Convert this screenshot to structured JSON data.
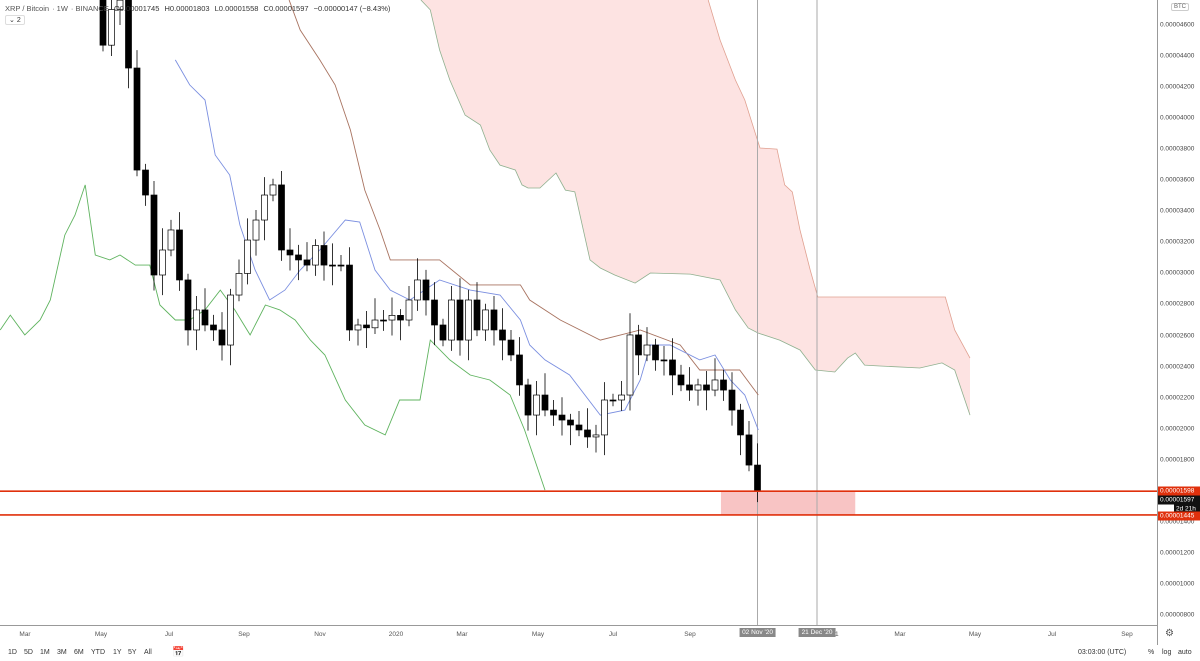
{
  "header": {
    "symbol": "XRP / Bitcoin",
    "interval": "1W",
    "exchange": "BINANCE",
    "o": "O0.00001745",
    "h": "H0.00001803",
    "l": "L0.00001558",
    "c": "C0.00001597",
    "change": "−0.00000147 (−8.43%)",
    "indicators_toggle": "2"
  },
  "price_axis": {
    "currency": "BTC",
    "labels": [
      "0.00004600",
      "0.00004400",
      "0.00004200",
      "0.00004000",
      "0.00003800",
      "0.00003600",
      "0.00003400",
      "0.00003200",
      "0.00003000",
      "0.00002800",
      "0.00002600",
      "0.00002400",
      "0.00002200",
      "0.00002000",
      "0.00001800",
      "0.00001600",
      "0.00001400",
      "0.00001200",
      "0.00001000",
      "0.00000800"
    ],
    "line_upper": "0.00001598",
    "last_price": "0.00001597",
    "countdown": "2d 21h",
    "line_lower": "0.00001445"
  },
  "time_axis": {
    "labels": [
      "Mar",
      "May",
      "Jul",
      "Sep",
      "Nov",
      "2020",
      "Mar",
      "May",
      "Jul",
      "Sep",
      "21",
      "Mar",
      "May",
      "Jul",
      "Sep"
    ],
    "marker1": "02 Nov '20",
    "marker2": "21 Dec '20"
  },
  "bottom_bar": {
    "ranges": [
      "1D",
      "5D",
      "1M",
      "3M",
      "6M",
      "YTD",
      "1Y",
      "5Y",
      "All"
    ],
    "time": "03:03:00 (UTC)",
    "percent": "%",
    "log": "log",
    "auto": "auto"
  },
  "colors": {
    "tenkan": "#7b8fe0",
    "kijun": "#a87360",
    "chikou": "#5fb35f",
    "cloud": "#fde3e2",
    "hline": "#e0300c",
    "zone": "#f8c4c4"
  },
  "chart_data": {
    "type": "candlestick",
    "unit": "1e-8 BTC",
    "x_unit": "weeks from first visible candle",
    "ylim": [
      736,
      4761
    ],
    "closes": [
      4470,
      4700,
      4760,
      4323,
      3666,
      3505,
      2990,
      3151,
      3280,
      2958,
      2636,
      2765,
      2668,
      2636,
      2539,
      2861,
      3000,
      3215,
      3344,
      3505,
      3570,
      3151,
      3119,
      3087,
      3054,
      3180,
      3054,
      3054,
      3054,
      2636,
      2668,
      2650,
      2700,
      2700,
      2730,
      2700,
      2829,
      2958,
      2829,
      2668,
      2571,
      2829,
      2571,
      2829,
      2636,
      2765,
      2636,
      2571,
      2475,
      2282,
      2088,
      2217,
      2120,
      2088,
      2056,
      2024,
      1992,
      1947,
      1960,
      2185,
      2185,
      2217,
      2604,
      2475,
      2539,
      2443,
      2443,
      2346,
      2282,
      2249,
      2282,
      2249,
      2314,
      2249,
      2120,
      1960,
      1766,
      1597
    ],
    "first_open": 4760,
    "tenkan": [
      [
        8.5,
        4375
      ],
      [
        10.2,
        4214
      ],
      [
        12,
        4117
      ],
      [
        13.2,
        3763
      ],
      [
        14.9,
        3634
      ],
      [
        16.1,
        3312
      ],
      [
        17.9,
        3022
      ],
      [
        19.6,
        2829
      ],
      [
        21.4,
        2893
      ],
      [
        23.2,
        3022
      ],
      [
        25.5,
        3151
      ],
      [
        28.5,
        3344
      ],
      [
        30.2,
        3331
      ],
      [
        32,
        3022
      ],
      [
        33.8,
        2893
      ],
      [
        36.1,
        2829
      ],
      [
        39.6,
        2958
      ],
      [
        43.2,
        2893
      ],
      [
        46.7,
        2861
      ],
      [
        49.1,
        2700
      ],
      [
        50.2,
        2539
      ],
      [
        52,
        2443
      ],
      [
        54.9,
        2346
      ],
      [
        58.5,
        2088
      ],
      [
        61.4,
        2120
      ],
      [
        63.2,
        2314
      ],
      [
        64.4,
        2539
      ],
      [
        66.7,
        2539
      ],
      [
        70.2,
        2443
      ],
      [
        72,
        2475
      ],
      [
        73.8,
        2314
      ],
      [
        75.5,
        2217
      ],
      [
        77.1,
        1992
      ]
    ],
    "kijun": [
      [
        21.9,
        4761
      ],
      [
        23.2,
        4568
      ],
      [
        25.5,
        4375
      ],
      [
        27.3,
        4214
      ],
      [
        29.1,
        3924
      ],
      [
        30.8,
        3537
      ],
      [
        32.6,
        3280
      ],
      [
        33.8,
        3087
      ],
      [
        39.6,
        3087
      ],
      [
        43.2,
        2926
      ],
      [
        49.1,
        2926
      ],
      [
        50.2,
        2829
      ],
      [
        53.8,
        2700
      ],
      [
        58.5,
        2571
      ],
      [
        63.2,
        2636
      ],
      [
        67.9,
        2539
      ],
      [
        70.2,
        2378
      ],
      [
        74.9,
        2378
      ],
      [
        77.1,
        2217
      ]
    ],
    "chikou": [
      [
        -12.1,
        2636
      ],
      [
        -10.9,
        2732
      ],
      [
        -9.2,
        2604
      ],
      [
        -7.4,
        2700
      ],
      [
        -6.2,
        2829
      ],
      [
        -4.5,
        3247
      ],
      [
        -3.3,
        3376
      ],
      [
        -2.1,
        3570
      ],
      [
        -0.9,
        3119
      ],
      [
        0.8,
        3087
      ],
      [
        2,
        3119
      ],
      [
        3.8,
        3054
      ],
      [
        5.5,
        3054
      ],
      [
        6.7,
        2797
      ],
      [
        8.5,
        2700
      ],
      [
        10.2,
        2700
      ],
      [
        12,
        2765
      ],
      [
        13.8,
        2893
      ],
      [
        15.5,
        2765
      ],
      [
        17.3,
        2604
      ],
      [
        19.1,
        2797
      ],
      [
        20.8,
        2765
      ],
      [
        22.6,
        2700
      ],
      [
        24.4,
        2571
      ],
      [
        26.1,
        2475
      ],
      [
        28.5,
        2185
      ],
      [
        30.8,
        2024
      ],
      [
        33.2,
        1960
      ],
      [
        34.9,
        2185
      ],
      [
        37.3,
        2185
      ],
      [
        38.5,
        2571
      ],
      [
        40.8,
        2443
      ],
      [
        43.2,
        2346
      ],
      [
        45.5,
        2314
      ],
      [
        47.9,
        2217
      ],
      [
        49.6,
        1992
      ],
      [
        52,
        1605
      ]
    ],
    "cloud_upper": [
      [
        71.2,
        4761
      ],
      [
        72.6,
        4503
      ],
      [
        74.4,
        4246
      ],
      [
        75.5,
        4117
      ],
      [
        76.8,
        3892
      ],
      [
        77.3,
        3808
      ],
      [
        79.3,
        3801
      ],
      [
        80.2,
        3570
      ],
      [
        81.1,
        3525
      ],
      [
        82,
        3280
      ],
      [
        83.2,
        3022
      ],
      [
        84.1,
        2848
      ],
      [
        99.1,
        2848
      ],
      [
        100.2,
        2636
      ],
      [
        102,
        2455
      ]
    ],
    "cloud_lower": [
      [
        37.4,
        4761
      ],
      [
        38.5,
        4697
      ],
      [
        39.6,
        4439
      ],
      [
        40.8,
        4246
      ],
      [
        42.6,
        4020
      ],
      [
        44.4,
        3956
      ],
      [
        45.5,
        3795
      ],
      [
        46.7,
        3698
      ],
      [
        48.5,
        3666
      ],
      [
        49.3,
        3570
      ],
      [
        50,
        3550
      ],
      [
        51.4,
        3550
      ],
      [
        53.3,
        3647
      ],
      [
        54.4,
        3537
      ],
      [
        55.5,
        3525
      ],
      [
        57.3,
        3087
      ],
      [
        58.5,
        3035
      ],
      [
        60.2,
        2990
      ],
      [
        62.6,
        2938
      ],
      [
        64.4,
        3003
      ],
      [
        69.1,
        2996
      ],
      [
        72.6,
        2958
      ],
      [
        74.4,
        2765
      ],
      [
        75.9,
        2649
      ],
      [
        77.1,
        2616
      ],
      [
        79.6,
        2571
      ],
      [
        82,
        2507
      ],
      [
        83.8,
        2378
      ],
      [
        86.1,
        2365
      ],
      [
        87.6,
        2455
      ],
      [
        88.5,
        2488
      ],
      [
        89.6,
        2410
      ],
      [
        91.4,
        2404
      ],
      [
        96.1,
        2391
      ],
      [
        98.7,
        2424
      ],
      [
        100.2,
        2378
      ],
      [
        102,
        2088
      ]
    ],
    "hlines": [
      1598,
      1445
    ],
    "zone": {
      "from_week": 72.7,
      "to_week": 88.5,
      "top": 1598,
      "bottom": 1445
    },
    "vlines": [
      77,
      84
    ]
  }
}
